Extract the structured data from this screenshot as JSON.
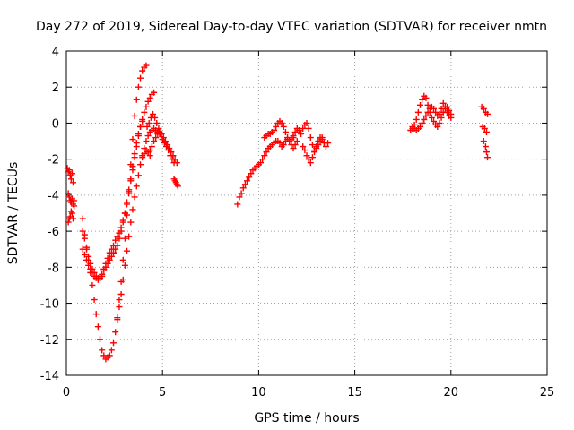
{
  "chart_data": {
    "type": "scatter",
    "title": "Day 272 of 2019, Sidereal Day-to-day VTEC variation (SDTVAR) for receiver nmtn",
    "xlabel": "GPS time / hours",
    "ylabel": "SDTVAR / TECUs",
    "xlim": [
      0,
      25
    ],
    "ylim": [
      -14,
      4
    ],
    "xticks": [
      0,
      5,
      10,
      15,
      20,
      25
    ],
    "yticks": [
      -14,
      -12,
      -10,
      -8,
      -6,
      -4,
      -2,
      0,
      2,
      4
    ],
    "grid": true,
    "marker": "plus",
    "color": "#ff0000",
    "series": [
      {
        "name": "arc-early-a",
        "x": [
          0.05,
          0.1,
          0.15,
          0.2,
          0.25,
          0.3,
          0.35
        ],
        "y": [
          -2.5,
          -2.7,
          -2.6,
          -2.9,
          -3.1,
          -2.8,
          -3.3
        ]
      },
      {
        "name": "arc-early-b",
        "x": [
          0.1,
          0.15,
          0.2,
          0.25,
          0.3,
          0.35,
          0.4,
          0.4
        ],
        "y": [
          -3.9,
          -4.1,
          -4.3,
          -4.4,
          -4.2,
          -4.5,
          -4.6,
          -4.3
        ]
      },
      {
        "name": "arc-early-c",
        "x": [
          0.1,
          0.15,
          0.2,
          0.25,
          0.3,
          0.35
        ],
        "y": [
          -5.5,
          -5.3,
          -5.2,
          -4.9,
          -5.0,
          -5.3
        ]
      },
      {
        "name": "arc-deep",
        "x": [
          0.85,
          0.95,
          1.05,
          1.15,
          1.25,
          1.35,
          1.45,
          1.55,
          1.65,
          1.75,
          1.85,
          1.95,
          2.05,
          2.15,
          2.25,
          2.35,
          2.45,
          2.55,
          2.65,
          2.75,
          2.85,
          2.95,
          3.05,
          3.15,
          3.25,
          3.35,
          3.45,
          3.55,
          3.65,
          3.75,
          3.85,
          3.95,
          4.05,
          4.15
        ],
        "y": [
          -6.0,
          -6.4,
          -7.0,
          -7.6,
          -8.3,
          -9.0,
          -9.8,
          -10.6,
          -11.3,
          -12.0,
          -12.6,
          -12.9,
          -13.1,
          -13.0,
          -12.9,
          -12.6,
          -12.2,
          -11.6,
          -10.8,
          -9.8,
          -8.8,
          -7.6,
          -6.4,
          -5.1,
          -3.7,
          -2.3,
          -0.9,
          0.4,
          1.3,
          2.0,
          2.5,
          2.9,
          3.1,
          3.2
        ]
      },
      {
        "name": "arc-shallow",
        "x": [
          0.85,
          0.95,
          1.05,
          1.15,
          1.25,
          1.35,
          1.45,
          1.55,
          1.65,
          1.75,
          1.85,
          1.95,
          2.05,
          2.15,
          2.25,
          2.35,
          2.45,
          2.55,
          2.65,
          2.75,
          2.85,
          2.95,
          3.05,
          3.15,
          3.25,
          3.35,
          3.45,
          3.55,
          3.65,
          3.75,
          3.85,
          3.95
        ],
        "y": [
          -5.3,
          -6.2,
          -6.9,
          -7.4,
          -7.8,
          -8.1,
          -8.3,
          -8.5,
          -8.6,
          -8.6,
          -8.4,
          -8.1,
          -7.8,
          -7.5,
          -7.2,
          -7.0,
          -6.8,
          -6.5,
          -6.3,
          -6.1,
          -5.8,
          -5.4,
          -5.0,
          -4.5,
          -3.9,
          -3.2,
          -2.6,
          -1.9,
          -1.3,
          -0.7,
          -0.2,
          0.1
        ]
      },
      {
        "name": "arc-mid",
        "x": [
          0.85,
          0.95,
          1.05,
          1.15,
          1.25,
          1.35,
          1.45,
          1.55,
          1.65,
          1.75,
          1.85,
          1.95,
          2.05,
          2.15,
          2.25,
          2.35,
          2.45,
          2.55,
          2.65,
          2.75,
          2.85,
          2.95,
          3.05,
          3.15,
          3.25,
          3.35,
          3.45,
          3.55,
          3.65,
          3.75,
          3.85,
          3.95,
          4.05,
          4.15,
          4.25,
          4.35,
          4.45,
          4.55
        ],
        "y": [
          -7.0,
          -7.3,
          -7.6,
          -7.9,
          -8.1,
          -8.3,
          -8.5,
          -8.6,
          -8.7,
          -8.6,
          -8.5,
          -8.2,
          -8.0,
          -7.8,
          -7.6,
          -7.4,
          -7.2,
          -7.0,
          -6.8,
          -6.4,
          -6.0,
          -5.5,
          -5.0,
          -4.4,
          -3.8,
          -3.1,
          -2.4,
          -1.7,
          -1.1,
          -0.6,
          -0.2,
          0.2,
          0.6,
          0.9,
          1.2,
          1.4,
          1.6,
          1.7
        ]
      },
      {
        "name": "arc-lower",
        "x": [
          2.65,
          2.75,
          2.85,
          2.95,
          3.05,
          3.15,
          3.25,
          3.35,
          3.45,
          3.55,
          3.65,
          3.75,
          3.85,
          3.95,
          4.05,
          4.15,
          4.25,
          4.35,
          4.45,
          4.55,
          4.65,
          4.75,
          4.85
        ],
        "y": [
          -10.9,
          -10.2,
          -9.5,
          -8.7,
          -7.9,
          -7.1,
          -6.3,
          -5.5,
          -4.8,
          -4.1,
          -3.5,
          -2.9,
          -2.3,
          -1.8,
          -1.4,
          -1.0,
          -0.7,
          -0.5,
          -0.4,
          -0.3,
          -0.4,
          -0.5,
          -0.6
        ]
      },
      {
        "name": "arc-descend-a",
        "x": [
          4.2,
          4.3,
          4.4,
          4.5,
          4.6,
          4.7,
          4.8,
          4.9,
          5.0,
          5.1,
          5.2,
          5.3,
          5.4,
          5.5,
          5.6
        ],
        "y": [
          -0.2,
          0.0,
          0.3,
          0.5,
          0.3,
          0.0,
          -0.3,
          -0.6,
          -0.9,
          -1.1,
          -1.3,
          -1.5,
          -1.8,
          -2.0,
          -2.2
        ]
      },
      {
        "name": "arc-descend-b",
        "x": [
          4.25,
          4.35,
          4.45,
          4.55,
          4.65,
          4.75,
          4.85,
          4.95,
          5.05,
          5.15,
          5.25,
          5.35,
          5.45,
          5.55,
          5.65,
          5.75
        ],
        "y": [
          -1.6,
          -1.5,
          -1.3,
          -1.0,
          -0.8,
          -0.6,
          -0.5,
          -0.6,
          -0.8,
          -1.0,
          -1.2,
          -1.4,
          -1.6,
          -1.8,
          -2.0,
          -2.2
        ]
      },
      {
        "name": "arc-descend-c",
        "x": [
          3.95,
          4.05,
          4.15,
          4.25,
          4.35
        ],
        "y": [
          -1.9,
          -1.7,
          -1.5,
          -1.6,
          -1.8
        ]
      },
      {
        "name": "arc-tail",
        "x": [
          5.6,
          5.65,
          5.7,
          5.75,
          5.8
        ],
        "y": [
          -3.1,
          -3.2,
          -3.3,
          -3.4,
          -3.5
        ]
      },
      {
        "name": "arc-10h-a",
        "x": [
          8.9,
          9.0,
          9.1,
          9.2,
          9.3,
          9.4,
          9.5,
          9.6,
          9.7,
          9.8,
          9.9,
          10.0,
          10.1,
          10.2,
          10.3,
          10.4,
          10.5,
          10.6,
          10.7,
          10.8,
          10.9,
          11.0,
          11.1,
          11.2,
          11.3,
          11.4,
          11.5,
          11.6,
          11.7,
          11.8,
          11.9,
          12.0
        ],
        "y": [
          -4.5,
          -4.1,
          -3.9,
          -3.6,
          -3.4,
          -3.2,
          -3.0,
          -2.8,
          -2.6,
          -2.5,
          -2.4,
          -2.3,
          -2.2,
          -2.0,
          -1.8,
          -1.6,
          -1.4,
          -1.3,
          -1.2,
          -1.1,
          -1.0,
          -1.0,
          -1.1,
          -1.3,
          -1.2,
          -1.0,
          -0.9,
          -1.0,
          -1.2,
          -1.4,
          -1.2,
          -1.0
        ]
      },
      {
        "name": "arc-10h-b",
        "x": [
          10.3,
          10.4,
          10.5,
          10.6,
          10.7,
          10.8,
          10.9,
          11.0,
          11.1,
          11.2,
          11.3,
          11.4,
          11.5,
          11.6,
          11.7,
          11.8
        ],
        "y": [
          -0.8,
          -0.7,
          -0.6,
          -0.6,
          -0.5,
          -0.4,
          -0.2,
          0.0,
          0.1,
          0.0,
          -0.2,
          -0.5,
          -0.8,
          -1.0,
          -0.9,
          -0.7
        ]
      },
      {
        "name": "arc-12h",
        "x": [
          11.8,
          11.9,
          12.0,
          12.1,
          12.2,
          12.3,
          12.4,
          12.5,
          12.6,
          12.7,
          12.8,
          12.9,
          13.0,
          13.1,
          13.2,
          13.3,
          13.4,
          13.5,
          13.6
        ],
        "y": [
          -0.8,
          -0.5,
          -0.3,
          -0.4,
          -0.6,
          -0.3,
          -0.1,
          0.0,
          -0.3,
          -0.8,
          -1.2,
          -1.5,
          -1.3,
          -1.0,
          -0.8,
          -0.9,
          -1.1,
          -1.3,
          -1.1
        ]
      },
      {
        "name": "arc-13h",
        "x": [
          12.3,
          12.4,
          12.5,
          12.6,
          12.7,
          12.8,
          12.9,
          13.0,
          13.1,
          13.2,
          13.3
        ],
        "y": [
          -1.3,
          -1.5,
          -1.8,
          -2.0,
          -2.2,
          -1.9,
          -1.6,
          -1.4,
          -1.2,
          -1.0,
          -0.8
        ]
      },
      {
        "name": "arc-18h",
        "x": [
          17.9,
          18.0,
          18.1,
          18.2,
          18.3,
          18.4,
          18.5,
          18.6,
          18.7,
          18.8,
          18.9,
          19.0,
          19.1,
          19.2,
          19.3,
          19.4,
          19.5,
          19.6,
          19.7,
          19.8,
          19.9,
          20.0
        ],
        "y": [
          -0.4,
          -0.3,
          -0.1,
          0.2,
          0.6,
          1.0,
          1.3,
          1.5,
          1.4,
          1.0,
          0.6,
          0.3,
          0.1,
          -0.1,
          -0.2,
          0.0,
          0.3,
          0.6,
          0.8,
          0.9,
          0.7,
          0.5
        ]
      },
      {
        "name": "arc-19h",
        "x": [
          18.0,
          18.1,
          18.2,
          18.3,
          18.4,
          18.5,
          18.6,
          18.7,
          18.8,
          18.9,
          19.0,
          19.1,
          19.2,
          19.3,
          19.4,
          19.5,
          19.6,
          19.7,
          19.8,
          19.9,
          20.0
        ],
        "y": [
          -0.2,
          -0.3,
          -0.4,
          -0.3,
          -0.2,
          0.0,
          0.2,
          0.4,
          0.6,
          0.8,
          0.9,
          0.8,
          0.6,
          0.4,
          0.5,
          0.8,
          1.1,
          0.9,
          0.6,
          0.4,
          0.3
        ]
      },
      {
        "name": "arc-21h",
        "x": [
          21.6,
          21.7,
          21.8,
          21.9,
          21.65,
          21.75,
          21.85,
          21.7,
          21.8,
          21.85,
          21.9
        ],
        "y": [
          0.9,
          0.8,
          0.6,
          0.5,
          -0.2,
          -0.3,
          -0.5,
          -1.0,
          -1.3,
          -1.6,
          -1.9
        ]
      }
    ]
  }
}
